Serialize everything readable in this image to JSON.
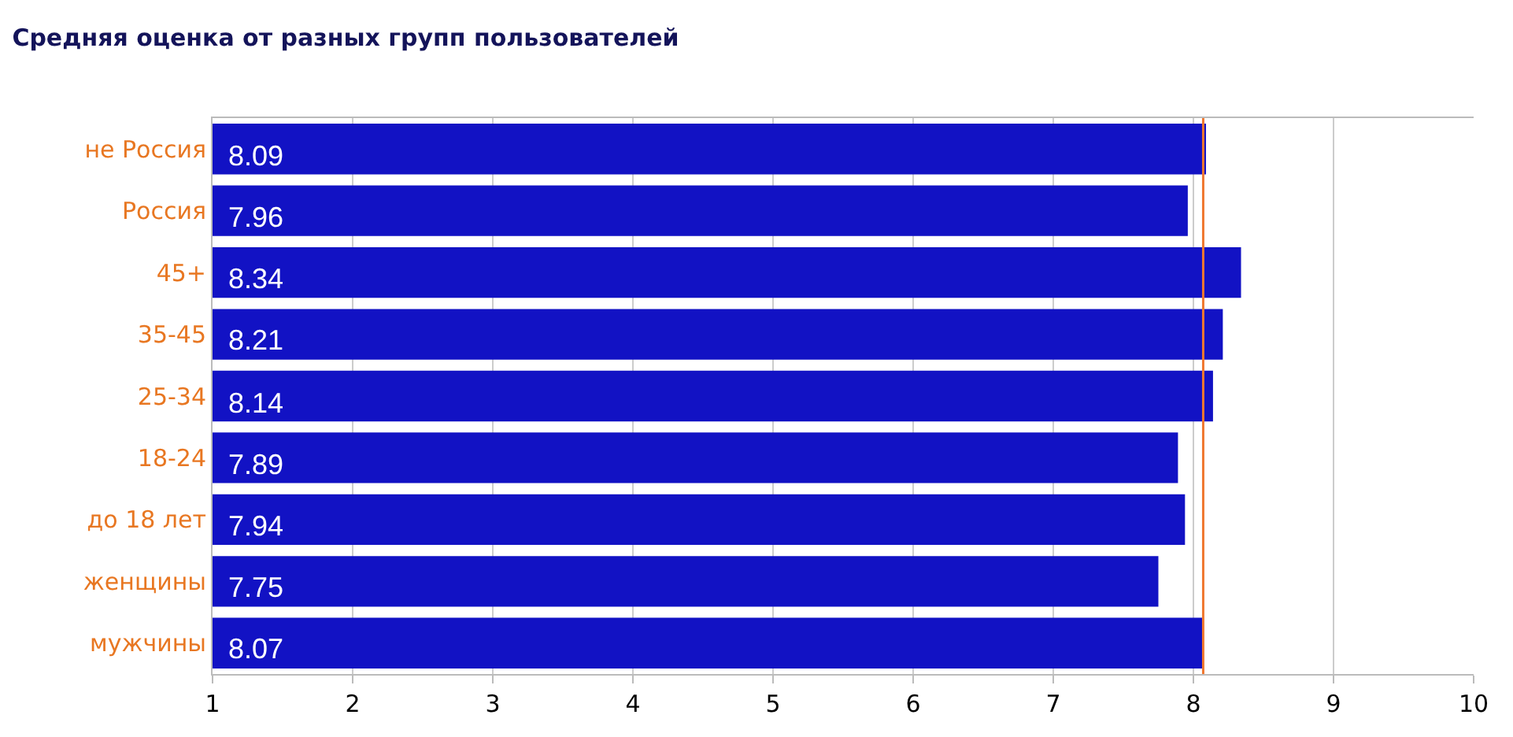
{
  "chart_data": {
    "type": "bar",
    "orientation": "horizontal",
    "title": "Средняя оценка от разных групп пользователей",
    "categories": [
      "не Россия",
      "Россия",
      "45+",
      "35-45",
      "25-34",
      "18-24",
      "до 18 лет",
      "женщины",
      "мужчины"
    ],
    "values": [
      8.09,
      7.96,
      8.34,
      8.21,
      8.14,
      7.89,
      7.94,
      7.75,
      8.07
    ],
    "color": "#1212c4",
    "xlim": [
      1,
      10
    ],
    "xticks": [
      1,
      2,
      3,
      4,
      5,
      6,
      7,
      8,
      9,
      10
    ],
    "data_labels": true,
    "grid": "x",
    "ref_lines": [
      {
        "axis": "x",
        "value": 8.07,
        "color": "#f07830"
      }
    ]
  }
}
